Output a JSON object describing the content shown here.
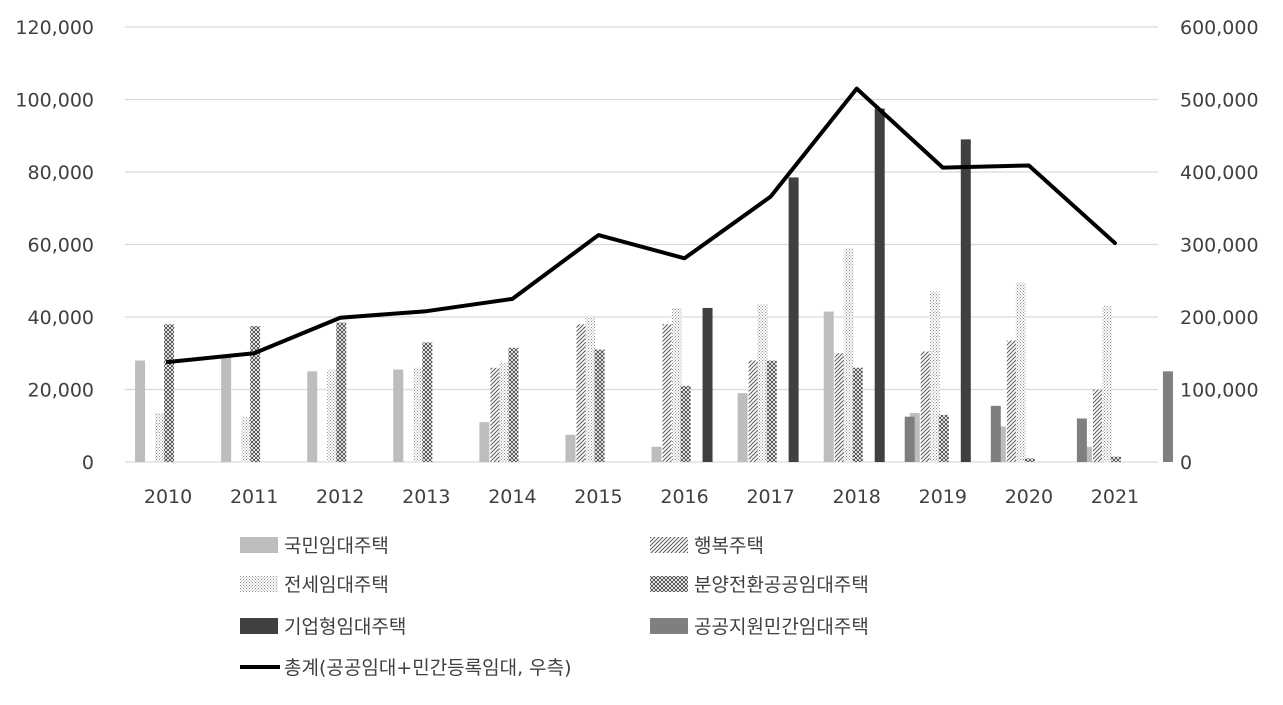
{
  "chart_data": {
    "type": "bar",
    "categories": [
      "2010",
      "2011",
      "2012",
      "2013",
      "2014",
      "2015",
      "2016",
      "2017",
      "2018",
      "2019",
      "2020",
      "2021"
    ],
    "y_left": {
      "ylim": [
        0,
        120000
      ],
      "ticks": [
        "0",
        "20,000",
        "40,000",
        "60,000",
        "80,000",
        "100,000",
        "120,000"
      ]
    },
    "y_right": {
      "ylim": [
        0,
        600000
      ],
      "ticks": [
        "0",
        "100,000",
        "200,000",
        "300,000",
        "400,000",
        "500,000",
        "600,000"
      ]
    },
    "grid": true,
    "legend_position": "bottom",
    "series": [
      {
        "name": "국민임대주택",
        "type": "bar",
        "axis": "left",
        "pattern": "solid-light",
        "values": [
          28000,
          29000,
          25000,
          25500,
          11000,
          7500,
          4200,
          19000,
          41500,
          13500,
          9800,
          4200
        ]
      },
      {
        "name": "행복주택",
        "type": "bar",
        "axis": "left",
        "pattern": "diag-hatch",
        "values": [
          0,
          0,
          0,
          0,
          26000,
          38000,
          38000,
          28000,
          30000,
          30500,
          33500,
          20000
        ]
      },
      {
        "name": "전세임대주택",
        "type": "bar",
        "axis": "left",
        "pattern": "dots",
        "values": [
          13500,
          12500,
          25500,
          26000,
          27500,
          40000,
          42500,
          43500,
          59000,
          47000,
          49500,
          43000
        ]
      },
      {
        "name": "분양전환공공임대주택",
        "type": "bar",
        "axis": "left",
        "pattern": "crosshatch",
        "values": [
          38000,
          37500,
          38500,
          33000,
          31500,
          31000,
          21000,
          28000,
          26000,
          13000,
          1000,
          1500
        ]
      },
      {
        "name": "기업형임대주택",
        "type": "bar",
        "axis": "left",
        "pattern": "solid-dark",
        "values": [
          0,
          0,
          0,
          0,
          0,
          0,
          42500,
          78500,
          97500,
          89000,
          0,
          0
        ]
      },
      {
        "name": "공공지원민간임대주택",
        "type": "bar",
        "axis": "left",
        "pattern": "solid-medium",
        "values": [
          0,
          0,
          0,
          0,
          0,
          0,
          0,
          0,
          12500,
          15500,
          12000,
          25000
        ]
      },
      {
        "name": "총계(공공임대+민간등록임대, 우측)",
        "type": "line",
        "axis": "right",
        "values": [
          138000,
          150000,
          199000,
          208000,
          225000,
          313000,
          281000,
          366000,
          515000,
          406000,
          409000,
          302000
        ]
      }
    ],
    "colors": {
      "solid_light": "#bdbdbd",
      "solid_dark": "#404040",
      "solid_medium": "#7f7f7f",
      "pattern_ink": "#595959",
      "line": "#000000",
      "grid": "#d9d9d9",
      "text": "#404040"
    }
  }
}
